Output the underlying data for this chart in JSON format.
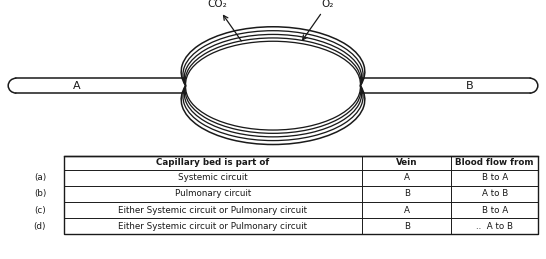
{
  "diagram": {
    "vessel_A_label": "A",
    "vessel_B_label": "B",
    "co2_label": "CO₂",
    "o2_label": "O₂"
  },
  "table": {
    "headers": [
      "Capillary bed is part of",
      "Vein",
      "Blood flow from"
    ],
    "row_labels": [
      "(a)",
      "(b)",
      "(c)",
      "(d)"
    ],
    "rows": [
      [
        "Systemic circuit",
        "A",
        "B to A"
      ],
      [
        "Pulmonary circuit",
        "B",
        "A to B"
      ],
      [
        "Either Systemic circuit or Pulmonary circuit",
        "A",
        "B to A"
      ],
      [
        "Either Systemic circuit or Pulmonary circuit",
        "B",
        "..  A to B"
      ]
    ]
  },
  "bg_color": "#ffffff",
  "line_color": "#1a1a1a"
}
